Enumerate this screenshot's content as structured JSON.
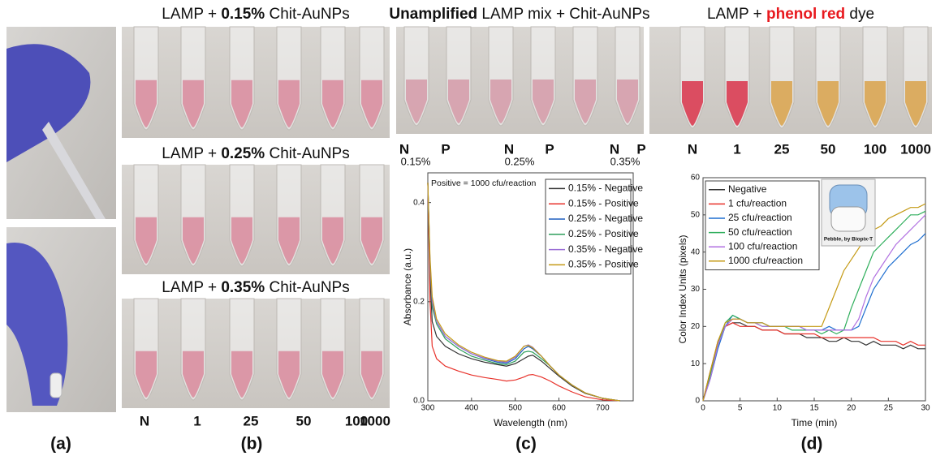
{
  "panel_labels": [
    "(a)",
    "(b)",
    "(c)",
    "(d)"
  ],
  "photo_b": {
    "titles": [
      {
        "prefix": "LAMP + ",
        "bold": "0.15%",
        "suffix": " Chit-AuNPs"
      },
      {
        "prefix": "LAMP + ",
        "bold": "0.25%",
        "suffix": " Chit-AuNPs"
      },
      {
        "prefix": "LAMP + ",
        "bold": "0.35%",
        "suffix": " Chit-AuNPs"
      }
    ],
    "labels": [
      "N",
      "1",
      "25",
      "50",
      "100",
      "1000"
    ]
  },
  "photo_c": {
    "title": {
      "bold": "Unamplified",
      "suffix": " LAMP mix + Chit-AuNPs"
    },
    "labels": [
      "N",
      "P",
      "N",
      "P",
      "N",
      "P"
    ],
    "concentrations": [
      "0.15%",
      "0.25%",
      "0.35%"
    ]
  },
  "photo_d": {
    "title": {
      "prefix": "LAMP + ",
      "highlight": "phenol red",
      "suffix": " dye"
    },
    "labels": [
      "N",
      "1",
      "25",
      "50",
      "100",
      "1000"
    ],
    "inset_caption": "Pebble, by Biopix-T"
  },
  "chart_data": [
    {
      "type": "line",
      "annotation": "Positive = 1000 cfu/reaction",
      "x_label": "Wavelength (nm)",
      "y_label": "Absorbance (a.u.)",
      "xlim": [
        300,
        770
      ],
      "ylim": [
        0,
        0.46
      ],
      "xticks": [
        300,
        400,
        500,
        600,
        700
      ],
      "yticks": [
        {
          "value": 0,
          "label": "0.0"
        },
        0.2,
        0.4
      ],
      "legend": "upper right",
      "x": [
        300,
        305,
        310,
        320,
        340,
        370,
        400,
        430,
        460,
        480,
        500,
        520,
        530,
        540,
        560,
        580,
        600,
        630,
        660,
        700,
        740
      ],
      "series": [
        {
          "name": "0.15% - Negative",
          "color": "#333333",
          "values": [
            0.44,
            0.25,
            0.16,
            0.13,
            0.11,
            0.095,
            0.085,
            0.078,
            0.073,
            0.07,
            0.075,
            0.085,
            0.09,
            0.092,
            0.08,
            0.065,
            0.05,
            0.03,
            0.015,
            0.005,
            0
          ]
        },
        {
          "name": "0.15% - Positive",
          "color": "#e8322b",
          "values": [
            0.44,
            0.2,
            0.11,
            0.085,
            0.07,
            0.06,
            0.052,
            0.047,
            0.043,
            0.04,
            0.042,
            0.048,
            0.052,
            0.053,
            0.048,
            0.04,
            0.03,
            0.018,
            0.008,
            0.002,
            0
          ]
        },
        {
          "name": "0.25% - Negative",
          "color": "#1f5fbf",
          "values": [
            0.44,
            0.28,
            0.2,
            0.16,
            0.13,
            0.11,
            0.095,
            0.085,
            0.078,
            0.076,
            0.085,
            0.105,
            0.11,
            0.105,
            0.09,
            0.07,
            0.052,
            0.032,
            0.016,
            0.005,
            0
          ]
        },
        {
          "name": "0.25% - Positive",
          "color": "#2e9e5b",
          "values": [
            0.44,
            0.27,
            0.19,
            0.155,
            0.125,
            0.105,
            0.09,
            0.082,
            0.075,
            0.073,
            0.08,
            0.098,
            0.1,
            0.098,
            0.085,
            0.07,
            0.052,
            0.032,
            0.016,
            0.005,
            0
          ]
        },
        {
          "name": "0.35% - Negative",
          "color": "#9b6fd6",
          "values": [
            0.44,
            0.28,
            0.2,
            0.16,
            0.13,
            0.11,
            0.095,
            0.086,
            0.08,
            0.078,
            0.088,
            0.11,
            0.113,
            0.108,
            0.09,
            0.07,
            0.052,
            0.032,
            0.016,
            0.005,
            0
          ]
        },
        {
          "name": "0.35% - Positive",
          "color": "#c49a14",
          "values": [
            0.44,
            0.29,
            0.21,
            0.165,
            0.135,
            0.113,
            0.098,
            0.088,
            0.081,
            0.08,
            0.09,
            0.11,
            0.112,
            0.107,
            0.09,
            0.07,
            0.052,
            0.032,
            0.016,
            0.005,
            0
          ]
        }
      ]
    },
    {
      "type": "line",
      "x_label": "Time (min)",
      "y_label": "Color Index Units (pixels)",
      "xlim": [
        0,
        30
      ],
      "ylim": [
        0,
        60
      ],
      "xticks": [
        0,
        5,
        10,
        15,
        20,
        25,
        30
      ],
      "yticks": [
        0,
        10,
        20,
        30,
        40,
        50,
        60
      ],
      "legend": "upper left",
      "x": [
        0,
        1,
        2,
        3,
        4,
        5,
        6,
        7,
        8,
        9,
        10,
        11,
        12,
        13,
        14,
        15,
        16,
        17,
        18,
        19,
        20,
        21,
        22,
        23,
        24,
        25,
        26,
        27,
        28,
        29,
        30
      ],
      "series": [
        {
          "name": "Negative",
          "color": "#333333",
          "values": [
            0,
            8,
            15,
            20,
            21,
            21,
            20,
            20,
            19,
            19,
            19,
            18,
            18,
            18,
            17,
            17,
            17,
            16,
            16,
            17,
            16,
            16,
            15,
            16,
            15,
            15,
            15,
            14,
            15,
            14,
            14
          ]
        },
        {
          "name": "1 cfu/reaction",
          "color": "#e8322b",
          "values": [
            0,
            8,
            16,
            20,
            21,
            20,
            20,
            20,
            19,
            19,
            19,
            18,
            18,
            18,
            18,
            18,
            17,
            17,
            17,
            17,
            17,
            17,
            17,
            17,
            16,
            16,
            16,
            15,
            16,
            15,
            15
          ]
        },
        {
          "name": "25 cfu/reaction",
          "color": "#1f6fd0",
          "values": [
            0,
            6,
            14,
            20,
            23,
            22,
            21,
            21,
            21,
            20,
            20,
            20,
            20,
            20,
            19,
            19,
            19,
            20,
            19,
            19,
            19,
            20,
            25,
            30,
            33,
            36,
            38,
            40,
            42,
            43,
            45
          ]
        },
        {
          "name": "50 cfu/reaction",
          "color": "#2eae5b",
          "values": [
            0,
            7,
            15,
            21,
            23,
            22,
            21,
            21,
            20,
            20,
            20,
            20,
            19,
            19,
            19,
            19,
            18,
            19,
            18,
            19,
            25,
            30,
            35,
            40,
            42,
            44,
            46,
            48,
            50,
            50,
            51
          ]
        },
        {
          "name": "100 cfu/reaction",
          "color": "#b06fe0",
          "values": [
            0,
            6,
            15,
            20,
            22,
            22,
            21,
            21,
            20,
            20,
            20,
            20,
            20,
            20,
            19,
            19,
            19,
            19,
            19,
            19,
            19,
            22,
            28,
            33,
            36,
            39,
            42,
            44,
            46,
            48,
            50
          ]
        },
        {
          "name": "1000 cfu/reaction",
          "color": "#c49a14",
          "values": [
            0,
            8,
            16,
            21,
            22,
            22,
            21,
            21,
            21,
            20,
            20,
            20,
            20,
            20,
            20,
            20,
            20,
            25,
            30,
            35,
            38,
            41,
            44,
            46,
            47,
            49,
            50,
            51,
            52,
            52,
            53
          ]
        }
      ]
    }
  ]
}
